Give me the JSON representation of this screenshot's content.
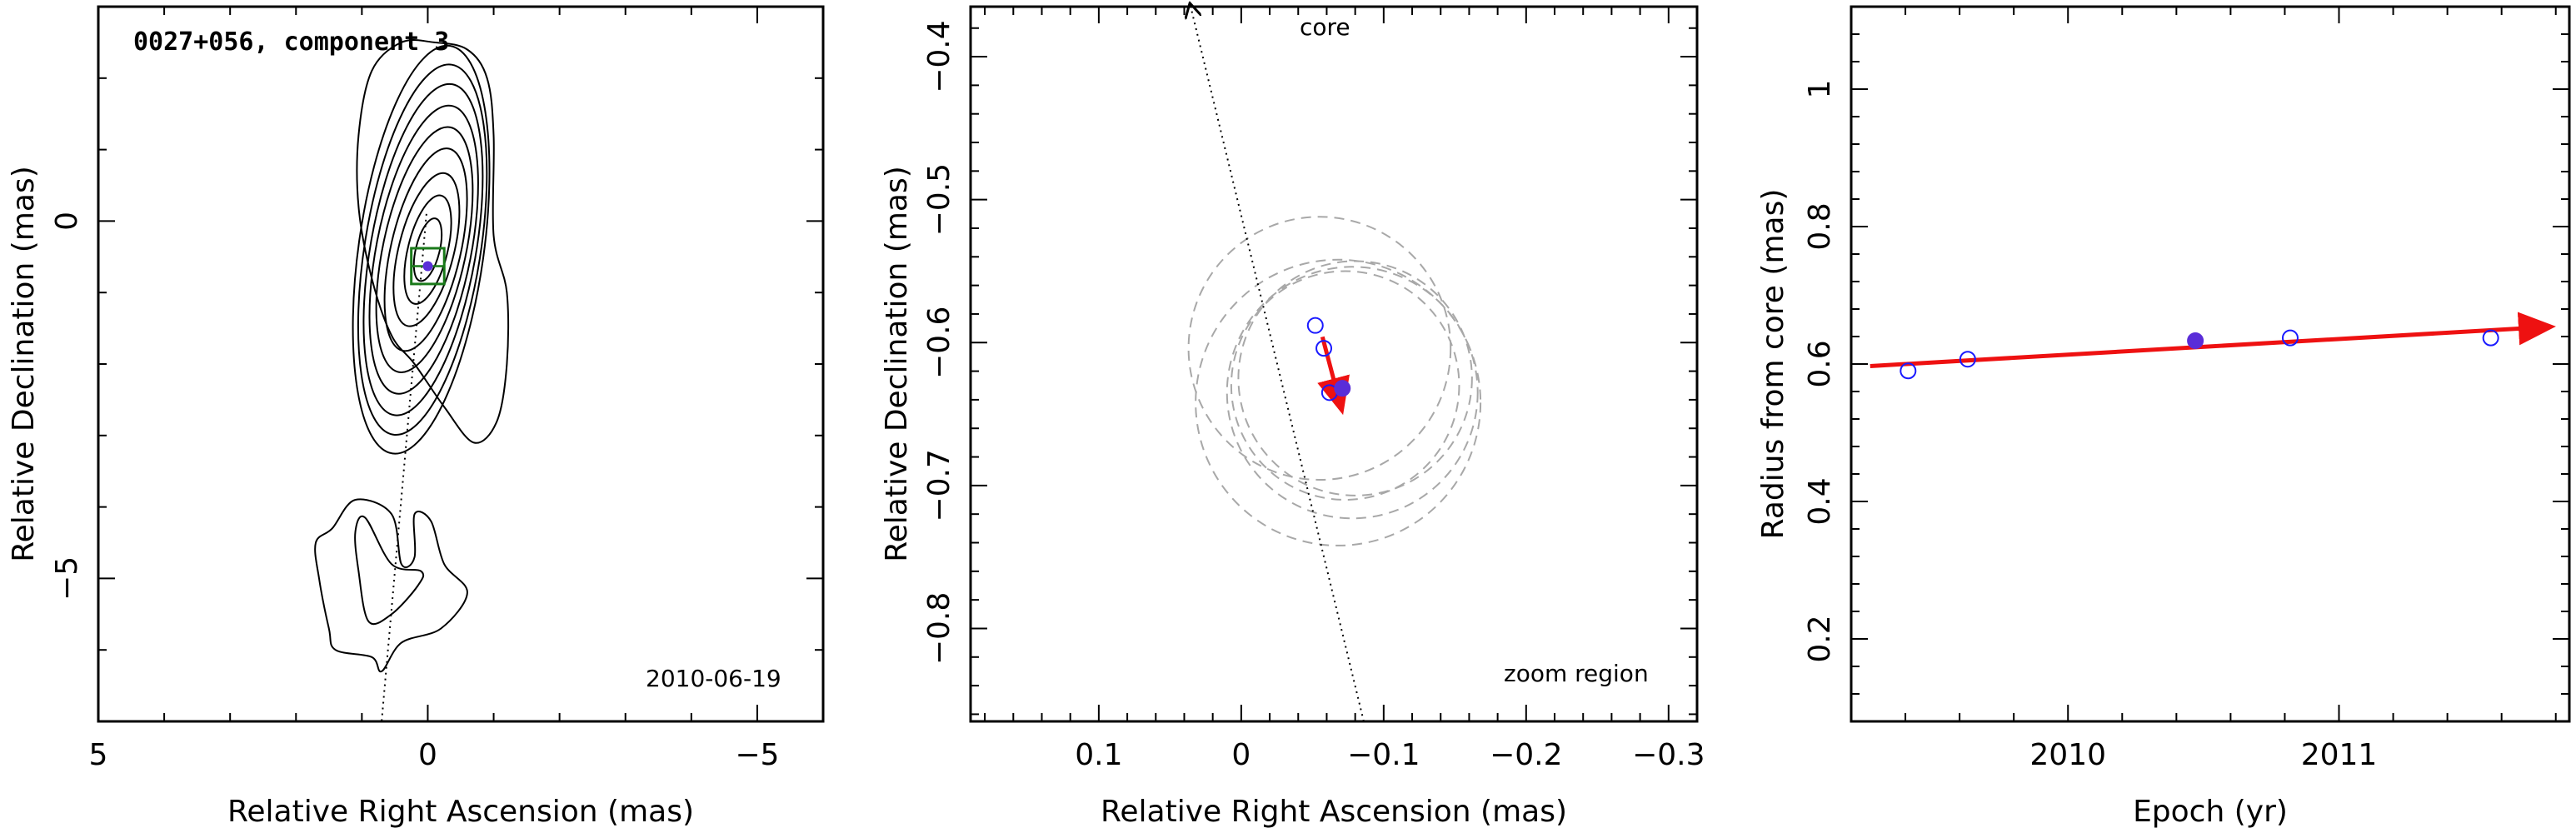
{
  "colors": {
    "ink": "#000000",
    "box": "#1a7a1a",
    "marker_fill": "#5a2dd8",
    "marker_open": "#1a1aff",
    "arrow": "#ee1111",
    "dashed": "#a8a8a8"
  },
  "chart_data": [
    {
      "type": "contour",
      "title": "0027+056, component 3",
      "annotation": "2010-06-19",
      "xlabel": "Relative Right Ascension (mas)",
      "ylabel": "Relative Declination (mas)",
      "xlim": [
        5,
        -6
      ],
      "ylim": [
        -7,
        3
      ],
      "xticks": [
        5,
        0,
        -5
      ],
      "xticklabels": [
        "5",
        "0",
        "−5"
      ],
      "yticks": [
        0,
        -5
      ],
      "yticklabels": [
        "0",
        "−5"
      ],
      "component": {
        "x": 0.0,
        "y": -0.63,
        "box_halfwidth": 0.25
      },
      "jet_axis": [
        {
          "x": 0.02,
          "y": 0.1
        },
        {
          "x": 0.7,
          "y": -7.0
        }
      ],
      "core_contours": [
        {
          "cx": 0.0,
          "cy": -0.4,
          "rx": 0.18,
          "ry": 0.45,
          "angle": 14
        },
        {
          "cx": 0.0,
          "cy": -0.4,
          "rx": 0.3,
          "ry": 0.78,
          "angle": 14
        },
        {
          "cx": 0.02,
          "cy": -0.4,
          "rx": 0.42,
          "ry": 1.1,
          "angle": 14
        },
        {
          "cx": 0.03,
          "cy": -0.4,
          "rx": 0.53,
          "ry": 1.45,
          "angle": 13
        },
        {
          "cx": 0.05,
          "cy": -0.4,
          "rx": 0.63,
          "ry": 1.75,
          "angle": 12
        },
        {
          "cx": 0.06,
          "cy": -0.4,
          "rx": 0.72,
          "ry": 2.05,
          "angle": 11
        },
        {
          "cx": 0.07,
          "cy": -0.4,
          "rx": 0.8,
          "ry": 2.35,
          "angle": 10
        },
        {
          "cx": 0.08,
          "cy": -0.4,
          "rx": 0.88,
          "ry": 2.62,
          "angle": 9
        },
        {
          "cx": 0.1,
          "cy": -0.4,
          "rx": 0.95,
          "ry": 2.88,
          "angle": 8
        }
      ],
      "outer_contour": [
        [
          -0.1,
          2.5
        ],
        [
          -0.6,
          2.4
        ],
        [
          -0.9,
          2.0
        ],
        [
          -1.0,
          1.2
        ],
        [
          -1.0,
          -0.2
        ],
        [
          -1.2,
          -1.0
        ],
        [
          -1.2,
          -2.0
        ],
        [
          -1.05,
          -2.8
        ],
        [
          -0.7,
          -3.1
        ],
        [
          -0.25,
          -2.6
        ],
        [
          0.2,
          -2.0
        ],
        [
          0.55,
          -1.6
        ],
        [
          0.85,
          -0.8
        ],
        [
          1.05,
          0.2
        ],
        [
          1.05,
          1.2
        ],
        [
          0.85,
          2.1
        ],
        [
          0.4,
          2.5
        ]
      ],
      "secondary_contours": [
        [
          [
            0.4,
            -4.8
          ],
          [
            0.55,
            -4.1
          ],
          [
            1.1,
            -3.9
          ],
          [
            1.45,
            -4.3
          ],
          [
            1.7,
            -4.5
          ],
          [
            1.65,
            -5.0
          ],
          [
            1.5,
            -5.7
          ],
          [
            1.4,
            -6.0
          ],
          [
            0.85,
            -6.1
          ],
          [
            0.7,
            -6.3
          ],
          [
            0.4,
            -5.9
          ],
          [
            -0.2,
            -5.7
          ],
          [
            -0.6,
            -5.2
          ],
          [
            -0.25,
            -4.8
          ],
          [
            -0.05,
            -4.2
          ],
          [
            0.2,
            -4.1
          ],
          [
            0.2,
            -4.7
          ]
        ],
        [
          [
            0.55,
            -4.8
          ],
          [
            0.95,
            -4.15
          ],
          [
            1.1,
            -4.35
          ],
          [
            1.05,
            -4.9
          ],
          [
            0.9,
            -5.6
          ],
          [
            0.55,
            -5.5
          ],
          [
            0.15,
            -5.1
          ],
          [
            0.1,
            -4.9
          ]
        ]
      ]
    },
    {
      "type": "scatter",
      "annotation": "zoom region",
      "core_label": "core",
      "xlabel": "Relative Right Ascension (mas)",
      "ylabel": "Relative Declination (mas)",
      "xlim": [
        0.19,
        -0.32
      ],
      "ylim": [
        -0.865,
        -0.365
      ],
      "xticks": [
        0.1,
        0,
        -0.1,
        -0.2,
        -0.3
      ],
      "xticklabels": [
        "0.1",
        "0",
        "−0.1",
        "−0.2",
        "−0.3"
      ],
      "yticks": [
        -0.4,
        -0.5,
        -0.6,
        -0.7,
        -0.8
      ],
      "yticklabels": [
        "−0.4",
        "−0.5",
        "−0.6",
        "−0.7",
        "−0.8"
      ],
      "points": [
        {
          "x": -0.052,
          "y": -0.588,
          "filled": false
        },
        {
          "x": -0.058,
          "y": -0.604,
          "filled": false
        },
        {
          "x": -0.062,
          "y": -0.635,
          "filled": false
        },
        {
          "x": -0.071,
          "y": -0.632,
          "filled": true
        }
      ],
      "arrow": {
        "x0": -0.057,
        "y0": -0.596,
        "x1": -0.07,
        "y1": -0.645
      },
      "core_direction": [
        {
          "x": 0.035,
          "y": -0.367
        },
        {
          "x": -0.086,
          "y": -0.865
        }
      ],
      "dashed_circles": [
        {
          "cx": -0.055,
          "cy": -0.604,
          "r": 0.092
        },
        {
          "cx": -0.073,
          "cy": -0.63,
          "r": 0.08
        },
        {
          "cx": -0.08,
          "cy": -0.625,
          "r": 0.082
        },
        {
          "cx": -0.078,
          "cy": -0.635,
          "r": 0.088
        },
        {
          "cx": -0.068,
          "cy": -0.642,
          "r": 0.1
        }
      ]
    },
    {
      "type": "scatter",
      "xlabel": "Epoch (yr)",
      "ylabel": "Radius from core (mas)",
      "xlim": [
        2009.2,
        2011.85
      ],
      "ylim": [
        0.08,
        1.12
      ],
      "xticks": [
        2010,
        2011
      ],
      "xticklabels": [
        "2010",
        "2011"
      ],
      "yticks": [
        0.2,
        0.4,
        0.6,
        0.8,
        1.0
      ],
      "yticklabels": [
        "0.2",
        "0.4",
        "0.6",
        "0.8",
        "1"
      ],
      "points": [
        {
          "x": 2009.41,
          "y": 0.59,
          "filled": false
        },
        {
          "x": 2009.63,
          "y": 0.607,
          "filled": false
        },
        {
          "x": 2010.47,
          "y": 0.634,
          "filled": true
        },
        {
          "x": 2010.82,
          "y": 0.638,
          "filled": false
        },
        {
          "x": 2011.56,
          "y": 0.638,
          "filled": false
        }
      ],
      "fit_line": {
        "x0": 2009.27,
        "y0": 0.597,
        "x1": 2011.77,
        "y1": 0.654
      }
    }
  ]
}
